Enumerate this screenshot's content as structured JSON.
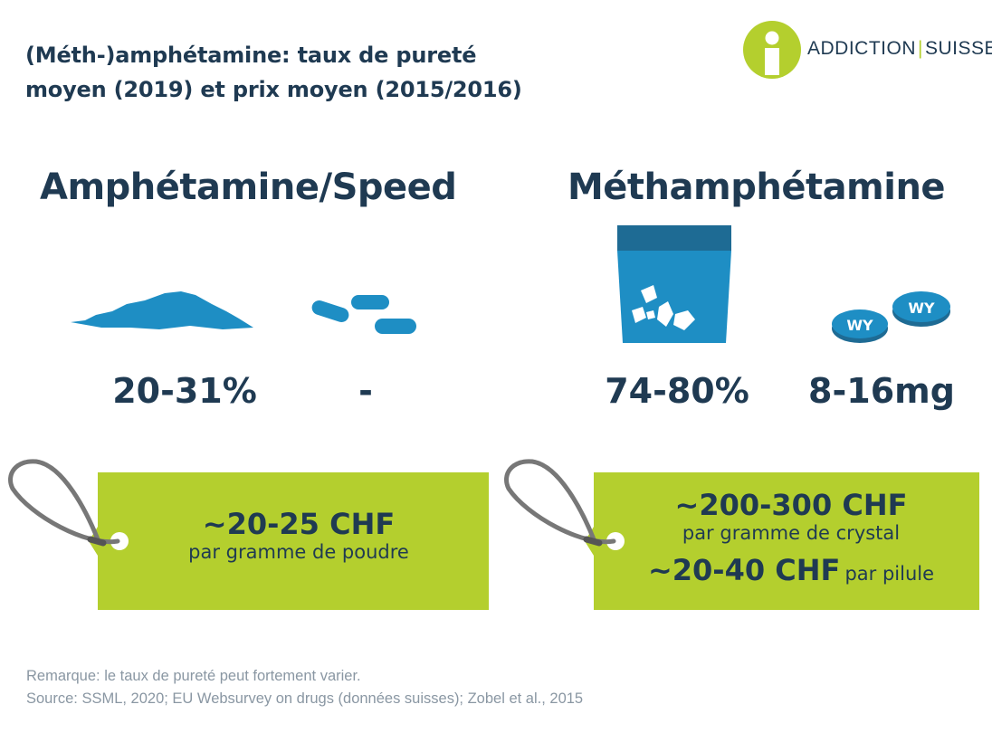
{
  "title": {
    "line1": "(Méth-)amphétamine: taux de pureté",
    "line2": "moyen (2019) et prix moyen (2015/2016)"
  },
  "logo": {
    "word1": "ADDICTION",
    "separator": "|",
    "word2": "SUISSE",
    "icon": "info-person-icon",
    "color_green": "#b4cf2e",
    "color_navy": "#1f3a52"
  },
  "amphetamine": {
    "heading": "Amphétamine/Speed",
    "powder_icon": "powder-pile-icon",
    "pill_icon": "capsule-pills-icon",
    "powder_purity": "20-31%",
    "pill_value": "-",
    "tag": {
      "price": "~20-25 CHF",
      "unit": "par gramme de poudre"
    }
  },
  "methamphetamine": {
    "heading": "Méthamphétamine",
    "crystal_icon": "crystal-bag-icon",
    "pill_icon": "wy-tablets-icon",
    "pill_marking": "WY",
    "crystal_purity": "74-80%",
    "pill_dose": "8-16mg",
    "tag": {
      "crystal_price": "~200-300 CHF",
      "crystal_unit": "par gramme de crystal",
      "pill_price": "~20-40 CHF",
      "pill_unit": "par pilule"
    }
  },
  "colors": {
    "icon_blue": "#1e8ec4",
    "tag_green": "#b4cf2e",
    "string_grey": "#777777"
  },
  "notes": {
    "remark": "Remarque: le taux de pureté peut fortement varier.",
    "source": "Source: SSML, 2020; EU Websurvey on drugs (données suisses); Zobel et al., 2015"
  }
}
